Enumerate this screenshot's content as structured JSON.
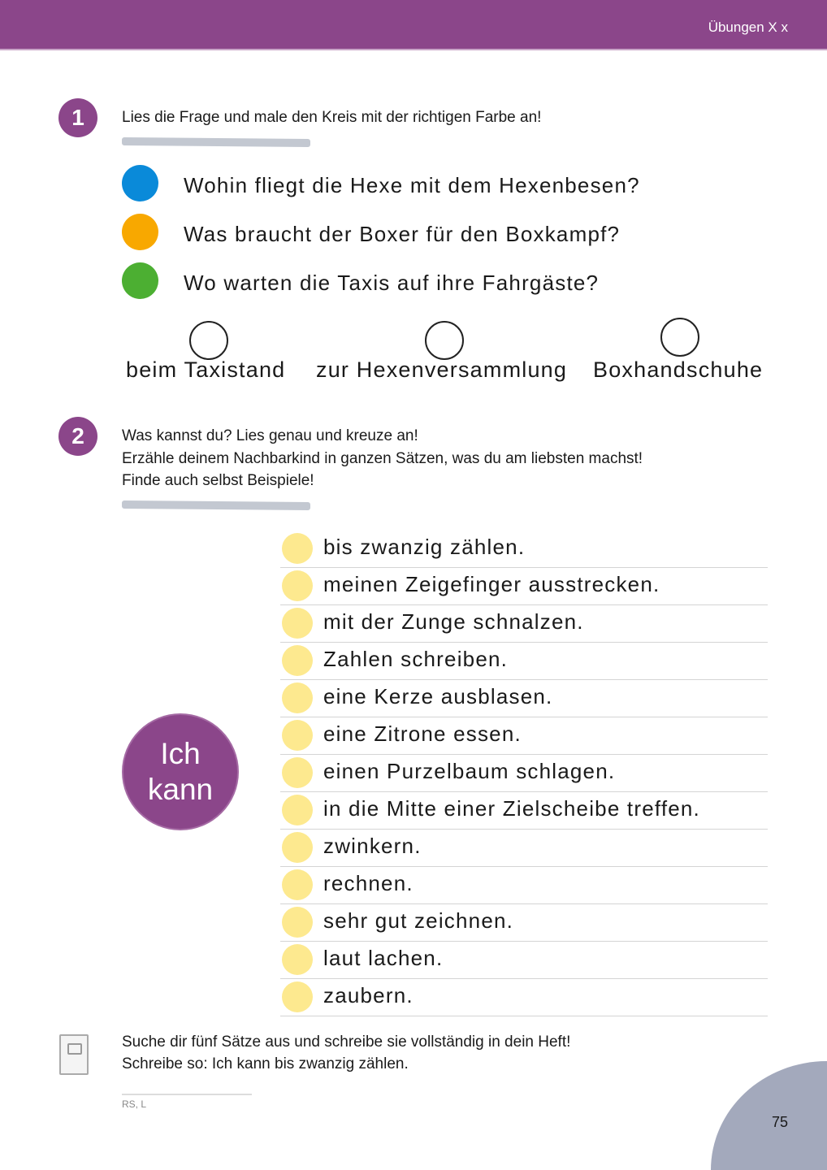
{
  "header": {
    "title": "Übungen X x"
  },
  "task1": {
    "number": "1",
    "instruction": "Lies die Frage und male den Kreis mit der richtigen Farbe an!",
    "questions": [
      {
        "color": "#0a8ad9",
        "text": "Wohin fliegt die Hexe mit dem Hexenbesen?"
      },
      {
        "color": "#f8a800",
        "text": "Was braucht der Boxer für den Boxkampf?"
      },
      {
        "color": "#4caf32",
        "text": "Wo warten die Taxis auf ihre Fahrgäste?"
      }
    ],
    "answers": [
      "beim Taxistand",
      "zur Hexenversammlung",
      "Boxhandschuhe"
    ]
  },
  "task2": {
    "number": "2",
    "instructions": [
      "Was kannst du? Lies genau und kreuze an!",
      "Erzähle deinem Nachbarkind in ganzen Sätzen, was du am liebsten machst!",
      "Finde auch selbst Beispiele!"
    ],
    "badge": [
      "Ich",
      "kann"
    ],
    "items": [
      "bis zwanzig zählen.",
      "meinen Zeigefinger ausstrecken.",
      "mit der Zunge schnalzen.",
      "Zahlen schreiben.",
      "eine Kerze ausblasen.",
      "eine Zitrone essen.",
      "einen Purzelbaum schlagen.",
      "in die Mitte einer Zielscheibe treffen.",
      "zwinkern.",
      "rechnen.",
      "sehr gut zeichnen.",
      "laut lachen.",
      "zaubern."
    ]
  },
  "task3": {
    "icon": "notebook-icon",
    "lines": [
      "Suche dir fünf Sätze aus und schreibe sie vollständig in dein Heft!",
      "Schreibe so: Ich kann bis zwanzig zählen."
    ]
  },
  "footer": {
    "code": "RS, L",
    "page": "75"
  }
}
